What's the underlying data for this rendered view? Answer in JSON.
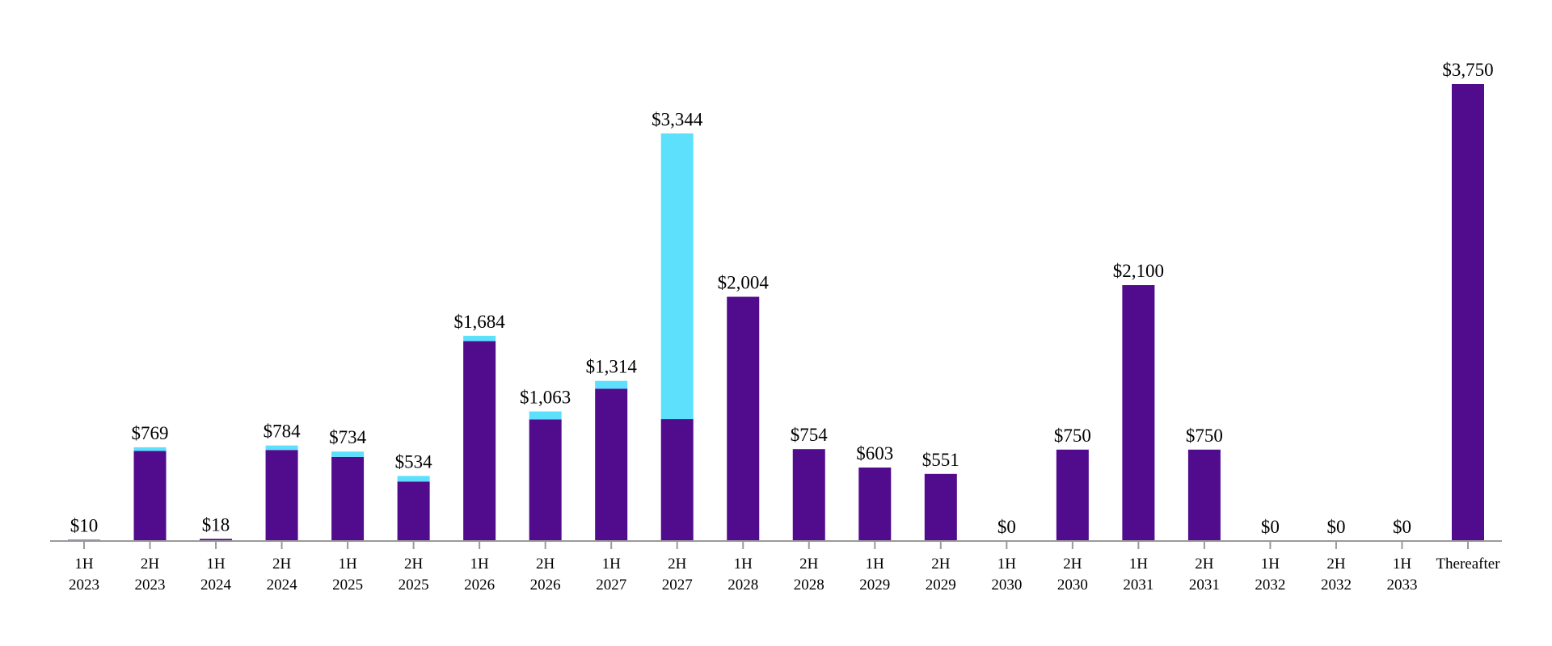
{
  "chart_data": {
    "type": "bar",
    "stacked": true,
    "title": "",
    "xlabel": "",
    "ylabel": "",
    "ylim": [
      0,
      3750
    ],
    "grid": false,
    "legend": "none",
    "categories": [
      [
        "1H",
        "2023"
      ],
      [
        "2H",
        "2023"
      ],
      [
        "1H",
        "2024"
      ],
      [
        "2H",
        "2024"
      ],
      [
        "1H",
        "2025"
      ],
      [
        "2H",
        "2025"
      ],
      [
        "1H",
        "2026"
      ],
      [
        "2H",
        "2026"
      ],
      [
        "1H",
        "2027"
      ],
      [
        "2H",
        "2027"
      ],
      [
        "1H",
        "2028"
      ],
      [
        "2H",
        "2028"
      ],
      [
        "1H",
        "2029"
      ],
      [
        "2H",
        "2029"
      ],
      [
        "1H",
        "2030"
      ],
      [
        "2H",
        "2030"
      ],
      [
        "1H",
        "2031"
      ],
      [
        "2H",
        "2031"
      ],
      [
        "1H",
        "2032"
      ],
      [
        "2H",
        "2032"
      ],
      [
        "1H",
        "2033"
      ],
      [
        "Thereafter",
        ""
      ]
    ],
    "totals_labels": [
      "$10",
      "$769",
      "$18",
      "$784",
      "$734",
      "$534",
      "$1,684",
      "$1,063",
      "$1,314",
      "$3,344",
      "$2,004",
      "$754",
      "$603",
      "$551",
      "$0",
      "$750",
      "$2,100",
      "$750",
      "$0",
      "$0",
      "$0",
      "$3,750"
    ],
    "series": [
      {
        "color": "#510b8d",
        "values": [
          10,
          739,
          18,
          747,
          690,
          487,
          1640,
          998,
          1250,
          1000,
          2004,
          754,
          603,
          551,
          0,
          750,
          2100,
          750,
          0,
          0,
          0,
          3750
        ]
      },
      {
        "color": "#5ce0fc",
        "values": [
          0,
          30,
          0,
          37,
          44,
          47,
          44,
          65,
          64,
          2344,
          0,
          0,
          0,
          0,
          0,
          0,
          0,
          0,
          0,
          0,
          0,
          0
        ]
      }
    ],
    "axis_color": "#9a9a9a"
  }
}
